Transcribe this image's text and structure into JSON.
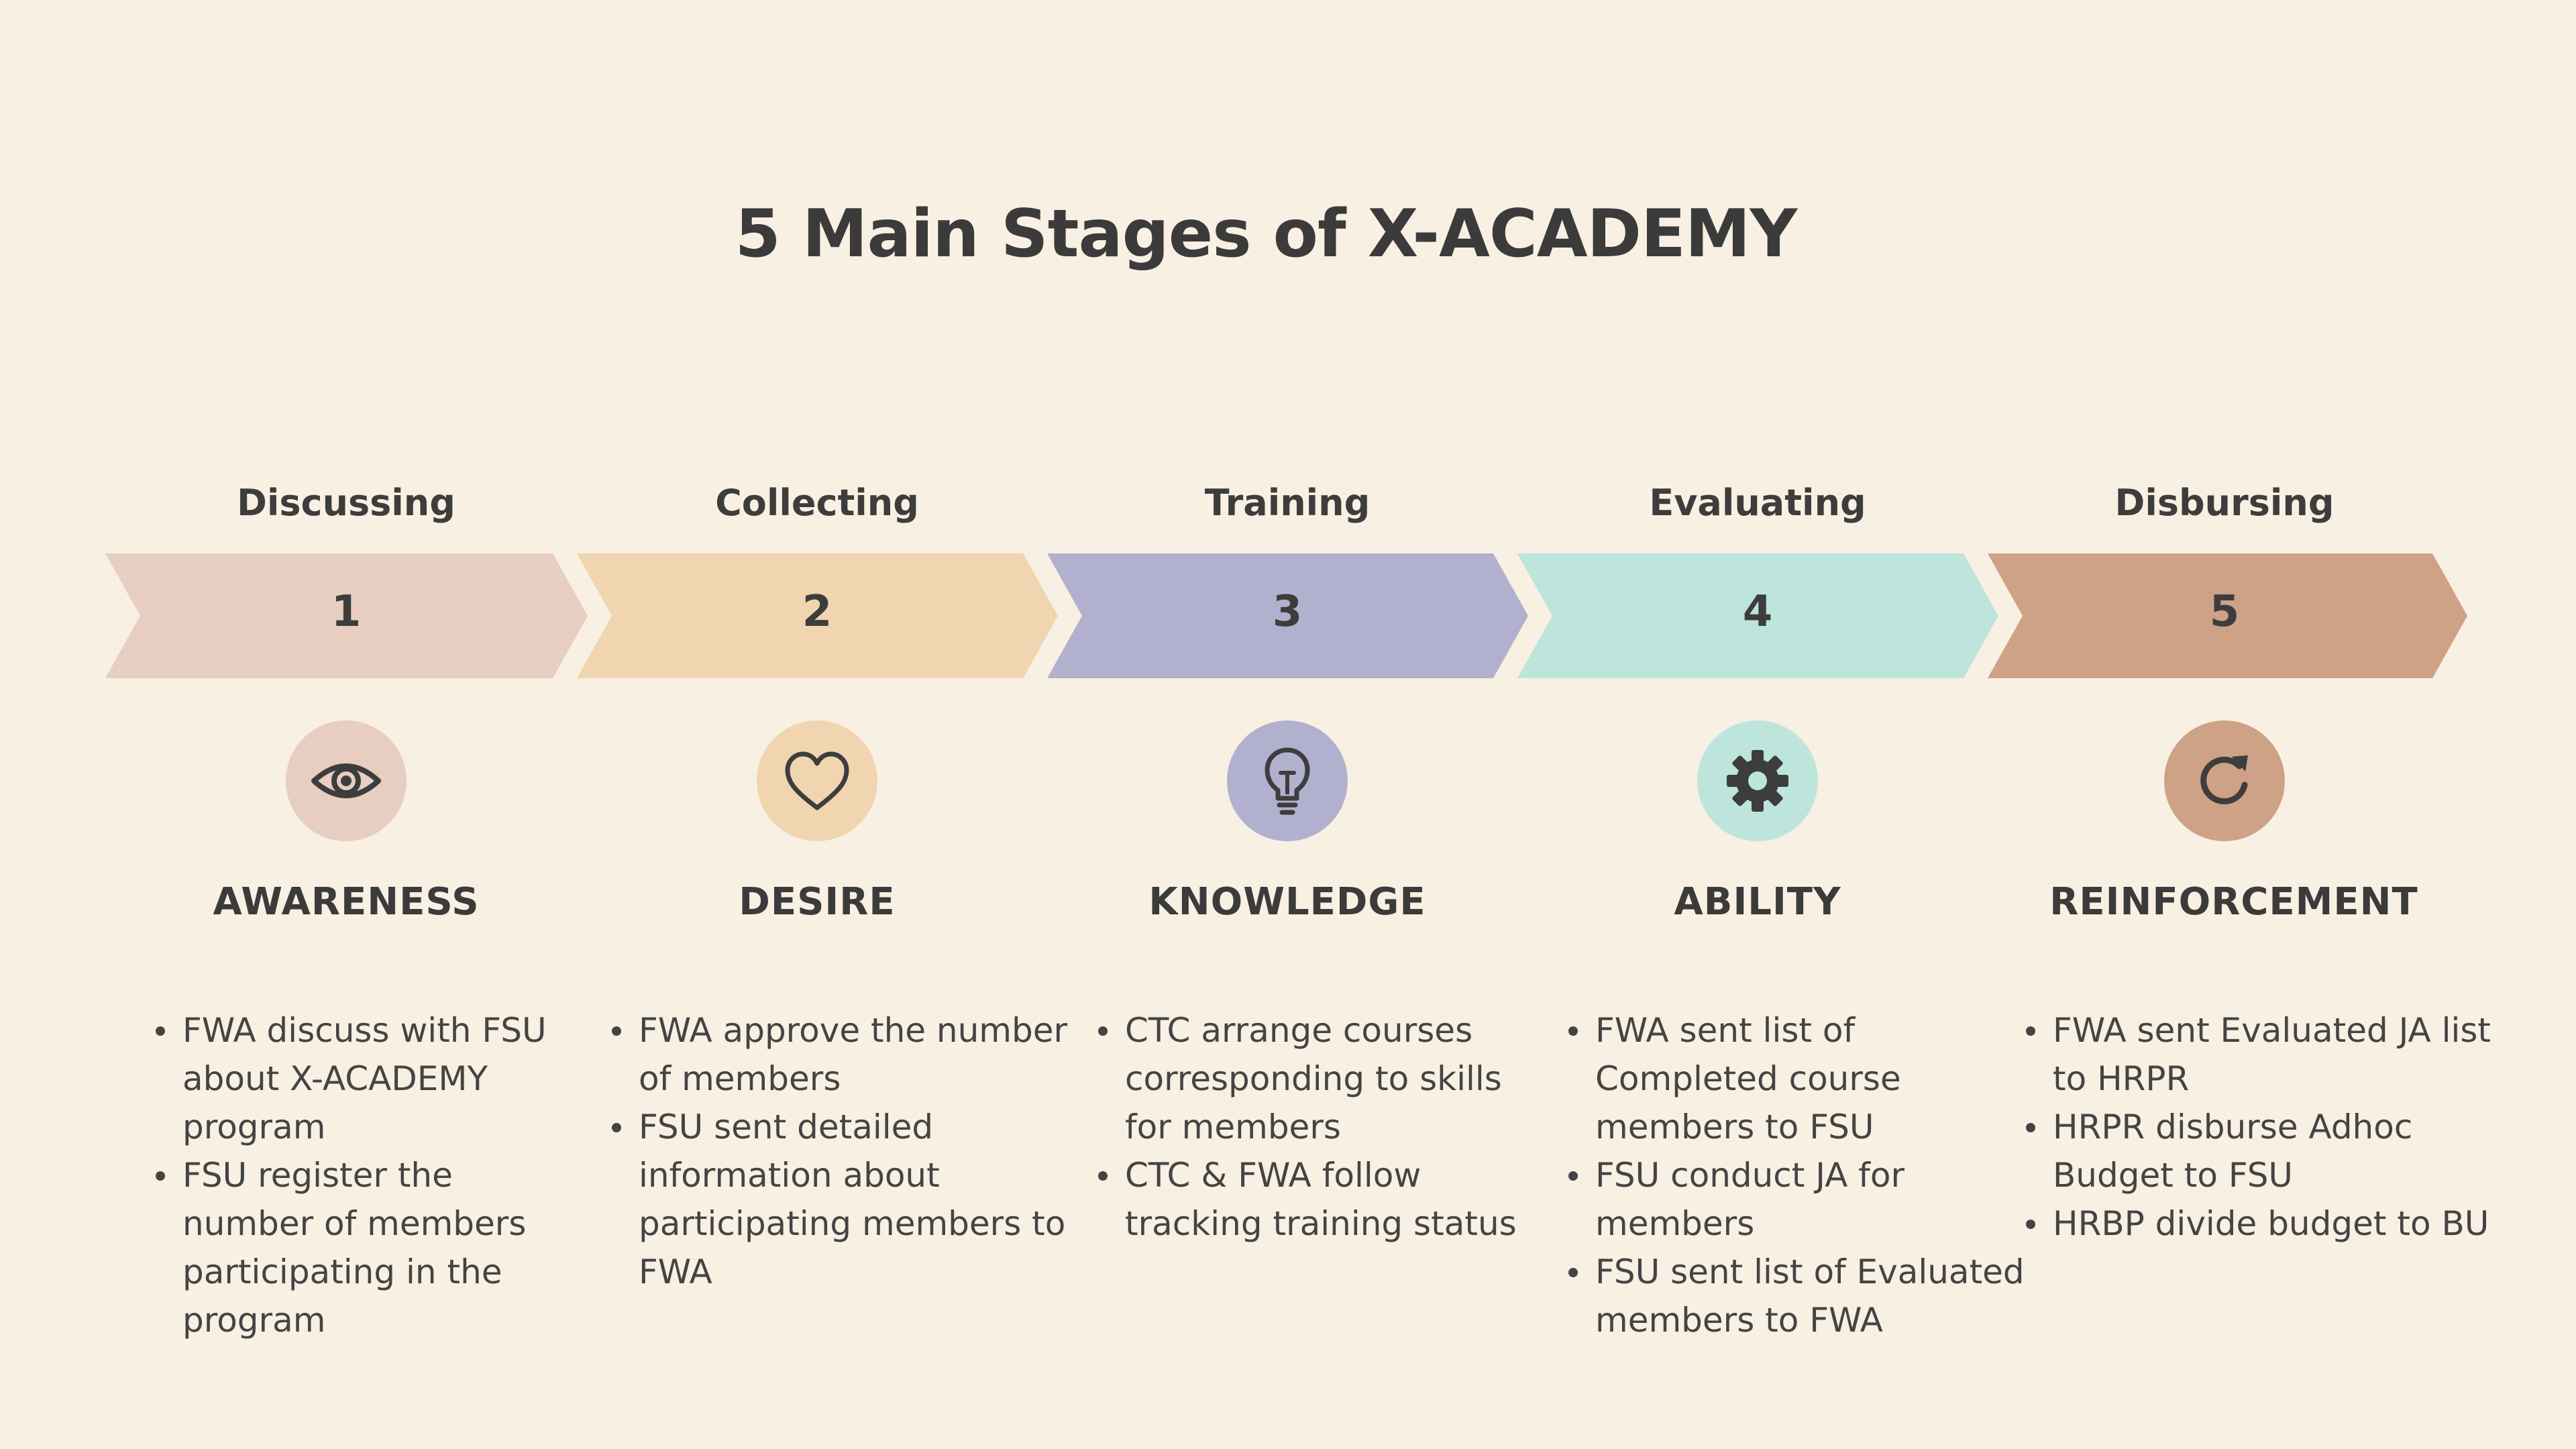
{
  "title": "5 Main Stages of X-ACADEMY",
  "colors": {
    "background": "#f8f0e2",
    "text": "#3d3d3d"
  },
  "stages": [
    {
      "name": "Discussing",
      "number": "1",
      "heading": "AWARENESS",
      "icon": "eye-icon",
      "color": "#e8cdc1",
      "bullets": [
        "FWA discuss with FSU about X-ACADEMY program",
        "FSU register the number of members participating in the program"
      ]
    },
    {
      "name": "Collecting",
      "number": "2",
      "heading": "DESIRE",
      "icon": "heart-icon",
      "color": "#f0d5b0",
      "bullets": [
        "FWA approve the number of members",
        "FSU sent detailed information about participating members to FWA"
      ]
    },
    {
      "name": "Training",
      "number": "3",
      "heading": "KNOWLEDGE",
      "icon": "lightbulb-icon",
      "color": "#b2b0cf",
      "bullets": [
        "CTC arrange courses corresponding to skills for members",
        "CTC & FWA follow tracking training status"
      ]
    },
    {
      "name": "Evaluating",
      "number": "4",
      "heading": "ABILITY",
      "icon": "gear-icon",
      "color": "#bde5dc",
      "bullets": [
        "FWA sent list of Completed course members to FSU",
        "FSU conduct JA for members",
        "FSU sent list of Evaluated members to FWA"
      ]
    },
    {
      "name": "Disbursing",
      "number": "5",
      "heading": "REINFORCEMENT",
      "icon": "refresh-icon",
      "color": "#cda287",
      "bullets": [
        "FWA sent Evaluated JA list to HRPR",
        "HRPR disburse Adhoc Budget to FSU",
        "HRBP divide budget to BU"
      ]
    }
  ]
}
